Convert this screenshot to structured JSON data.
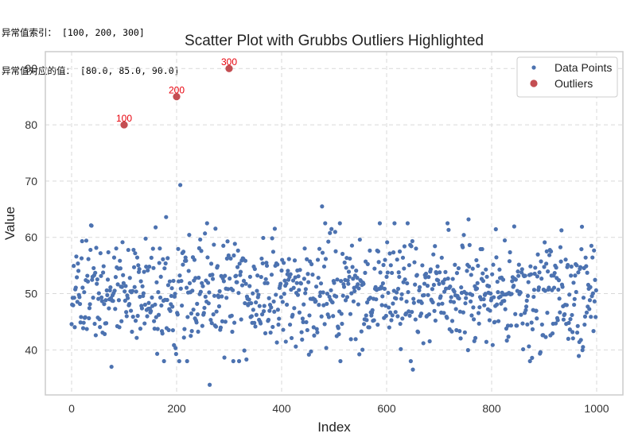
{
  "console": {
    "lines": [
      "异常值索引： [100, 200, 300]",
      "异常值对应的值： [80.0, 85.0, 90.0]"
    ]
  },
  "colors": {
    "points": "#4c72b0",
    "outliers": "#c44e52",
    "grid": "#d9d9d9",
    "frame": "#cccccc",
    "annotation": "#e8000b"
  },
  "chart_data": {
    "type": "scatter",
    "title": "Scatter Plot with Grubbs Outliers Highlighted",
    "xlabel": "Index",
    "ylabel": "Value",
    "xlim": [
      -50,
      1050
    ],
    "ylim": [
      32,
      93
    ],
    "xticks": [
      0,
      200,
      400,
      600,
      800,
      1000
    ],
    "yticks": [
      40,
      50,
      60,
      70,
      80,
      90
    ],
    "grid": true,
    "grid_style": "dashed",
    "legend_position": "top-right",
    "series": [
      {
        "name": "Data Points",
        "n_points": 1000,
        "x_range": [
          0,
          999
        ],
        "y_center": 50,
        "y_spread": 5,
        "notable_points": [
          {
            "x": 76,
            "y": 37
          },
          {
            "x": 180,
            "y": 63.6
          },
          {
            "x": 207,
            "y": 69.3
          },
          {
            "x": 263,
            "y": 33.8
          },
          {
            "x": 477,
            "y": 65.5
          },
          {
            "x": 650,
            "y": 36.5
          },
          {
            "x": 756,
            "y": 63.2
          }
        ]
      },
      {
        "name": "Outliers",
        "points": [
          {
            "x": 100,
            "y": 80.0,
            "label": "100"
          },
          {
            "x": 200,
            "y": 85.0,
            "label": "200"
          },
          {
            "x": 300,
            "y": 90.0,
            "label": "300"
          }
        ]
      }
    ]
  }
}
